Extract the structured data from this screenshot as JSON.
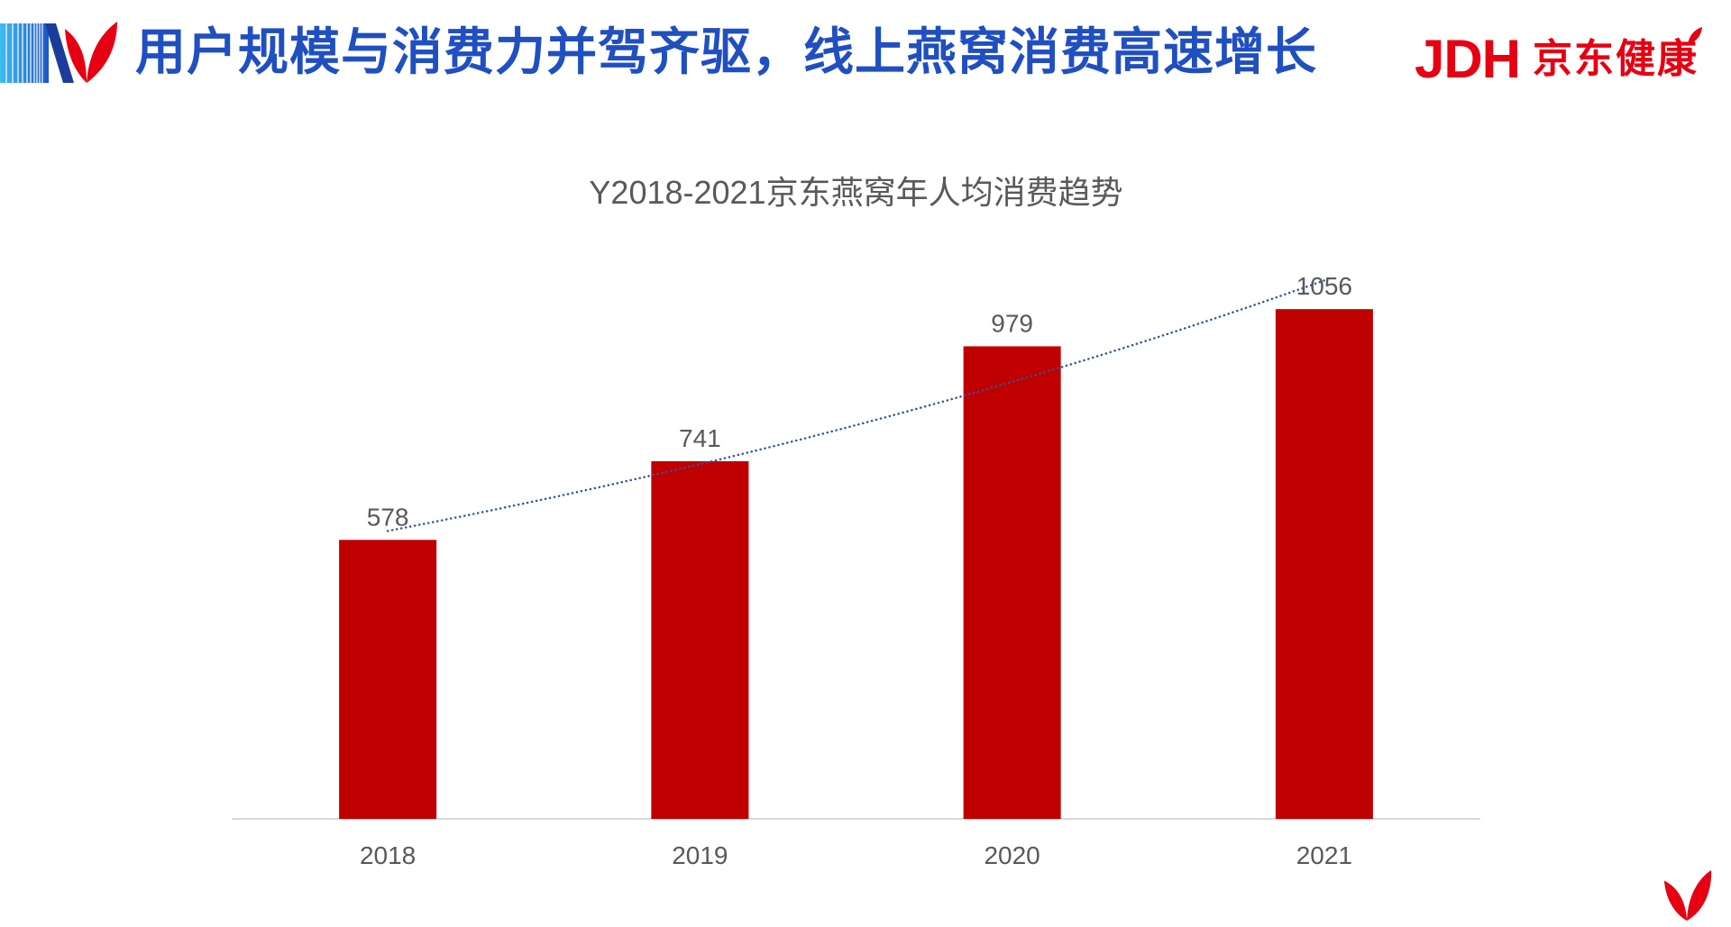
{
  "header": {
    "title": "用户规模与消费力并驾齐驱，线上燕窝消费高速增长",
    "brand_logo": {
      "mark": "JDH",
      "name": "京东健康"
    }
  },
  "icons": {
    "header_logo": "stripes-leaf-logo",
    "brand_leaf": "leaf-icon",
    "footer_logo": "leaf-logo"
  },
  "colors": {
    "title": "#1F4FC1",
    "brand_red": "#E60012",
    "bar": "#C00000",
    "text_gray": "#595959",
    "axis": "#D9D9D9",
    "trendline": "#2F5597"
  },
  "chart_data": {
    "type": "bar",
    "title": "Y2018-2021京东燕窝年人均消费趋势",
    "categories": [
      "2018",
      "2019",
      "2020",
      "2021"
    ],
    "values": [
      578,
      741,
      979,
      1056
    ],
    "data_labels": true,
    "ylim": [
      0,
      1200
    ],
    "y_axis_visible": false,
    "grid": false,
    "legend": "none",
    "trendline": "exponential"
  }
}
